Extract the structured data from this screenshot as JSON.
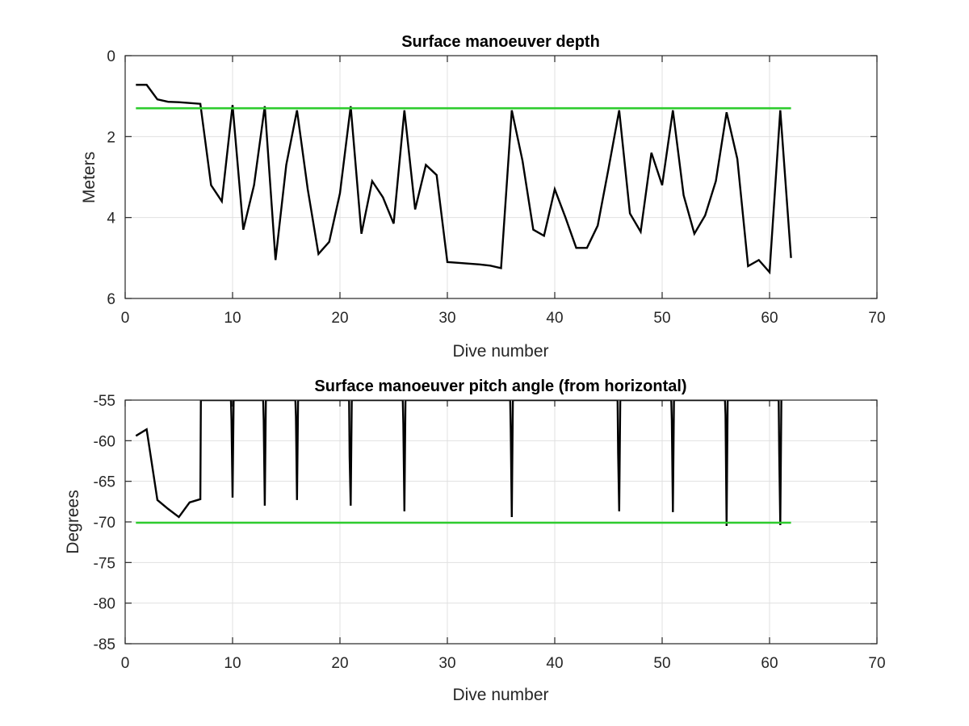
{
  "chart_data": [
    {
      "type": "line",
      "title": "Surface manoeuver depth",
      "xlabel": "Dive number",
      "ylabel": "Meters",
      "xlim": [
        0,
        70
      ],
      "ylim": [
        0,
        6
      ],
      "y_reversed": true,
      "grid": true,
      "xticks": [
        "0",
        "10",
        "20",
        "30",
        "40",
        "50",
        "60",
        "70"
      ],
      "yticks": [
        "0",
        "2",
        "4",
        "6"
      ],
      "series": [
        {
          "color": "#000000",
          "points": [
            [
              1,
              0.72
            ],
            [
              2,
              0.72
            ],
            [
              3,
              1.08
            ],
            [
              4,
              1.14
            ],
            [
              5,
              1.15
            ],
            [
              6,
              1.17
            ],
            [
              7,
              1.19
            ],
            [
              8,
              3.2
            ],
            [
              9,
              3.6
            ],
            [
              10,
              1.22
            ],
            [
              11,
              4.3
            ],
            [
              12,
              3.2
            ],
            [
              13,
              1.25
            ],
            [
              14,
              5.05
            ],
            [
              15,
              2.7
            ],
            [
              16,
              1.35
            ],
            [
              17,
              3.3
            ],
            [
              18,
              4.9
            ],
            [
              19,
              4.6
            ],
            [
              20,
              3.4
            ],
            [
              21,
              1.25
            ],
            [
              22,
              4.4
            ],
            [
              23,
              3.1
            ],
            [
              24,
              3.5
            ],
            [
              25,
              4.15
            ],
            [
              26,
              1.35
            ],
            [
              27,
              3.8
            ],
            [
              28,
              2.7
            ],
            [
              29,
              2.95
            ],
            [
              30,
              5.1
            ],
            [
              31,
              5.12
            ],
            [
              32,
              5.14
            ],
            [
              33,
              5.16
            ],
            [
              34,
              5.19
            ],
            [
              35,
              5.25
            ],
            [
              36,
              1.35
            ],
            [
              37,
              2.6
            ],
            [
              38,
              4.3
            ],
            [
              39,
              4.45
            ],
            [
              40,
              3.3
            ],
            [
              41,
              4.0
            ],
            [
              42,
              4.75
            ],
            [
              43,
              4.75
            ],
            [
              44,
              4.2
            ],
            [
              45,
              2.8
            ],
            [
              46,
              1.35
            ],
            [
              47,
              3.9
            ],
            [
              48,
              4.35
            ],
            [
              49,
              2.4
            ],
            [
              50,
              3.2
            ],
            [
              51,
              1.35
            ],
            [
              52,
              3.45
            ],
            [
              53,
              4.4
            ],
            [
              54,
              3.95
            ],
            [
              55,
              3.1
            ],
            [
              56,
              1.4
            ],
            [
              57,
              2.55
            ],
            [
              58,
              5.2
            ],
            [
              59,
              5.05
            ],
            [
              60,
              5.35
            ],
            [
              61,
              1.35
            ],
            [
              62,
              5.0
            ]
          ]
        },
        {
          "color": "#2ecc2e",
          "points": [
            [
              1,
              1.3
            ],
            [
              62,
              1.3
            ]
          ]
        }
      ]
    },
    {
      "type": "line",
      "title": "Surface manoeuver pitch angle (from horizontal)",
      "xlabel": "Dive number",
      "ylabel": "Degrees",
      "xlim": [
        0,
        70
      ],
      "ylim": [
        -85,
        -55
      ],
      "grid": true,
      "xticks": [
        "0",
        "10",
        "20",
        "30",
        "40",
        "50",
        "60",
        "70"
      ],
      "yticks": [
        "-55",
        "-60",
        "-65",
        "-70",
        "-75",
        "-80",
        "-85"
      ],
      "series": [
        {
          "color": "#000000",
          "points": [
            [
              1,
              -59.4
            ],
            [
              2,
              -58.6
            ],
            [
              3,
              -67.3
            ],
            [
              4,
              -68.4
            ],
            [
              5,
              -69.4
            ],
            [
              6,
              -67.6
            ],
            [
              7,
              -67.2
            ],
            [
              7.05,
              -55
            ],
            [
              9.85,
              -55
            ],
            [
              9.9,
              -57.5
            ],
            [
              10,
              -67
            ],
            [
              10.1,
              -55
            ],
            [
              12.85,
              -55
            ],
            [
              12.9,
              -57.5
            ],
            [
              13,
              -68
            ],
            [
              13.1,
              -55
            ],
            [
              15.85,
              -55
            ],
            [
              15.9,
              -57
            ],
            [
              16,
              -67.3
            ],
            [
              16.1,
              -55
            ],
            [
              20.85,
              -55
            ],
            [
              20.9,
              -62
            ],
            [
              21,
              -68
            ],
            [
              21.1,
              -55
            ],
            [
              25.85,
              -55
            ],
            [
              25.9,
              -58
            ],
            [
              26,
              -68.7
            ],
            [
              26.1,
              -55
            ],
            [
              35.85,
              -55
            ],
            [
              35.9,
              -58.5
            ],
            [
              36,
              -69.4
            ],
            [
              36.1,
              -55
            ],
            [
              45.85,
              -55
            ],
            [
              45.9,
              -61.5
            ],
            [
              46,
              -68.7
            ],
            [
              46.1,
              -55
            ],
            [
              50.85,
              -55
            ],
            [
              50.9,
              -57.5
            ],
            [
              51,
              -68.8
            ],
            [
              51.1,
              -55
            ],
            [
              55.85,
              -55
            ],
            [
              55.9,
              -56.8
            ],
            [
              56,
              -70.5
            ],
            [
              56.1,
              -55
            ],
            [
              60.85,
              -55
            ],
            [
              60.9,
              -61.5
            ],
            [
              61,
              -70.4
            ],
            [
              61.1,
              -55
            ]
          ]
        },
        {
          "color": "#2ecc2e",
          "points": [
            [
              1,
              -70.1
            ],
            [
              62,
              -70.1
            ]
          ]
        }
      ]
    }
  ]
}
